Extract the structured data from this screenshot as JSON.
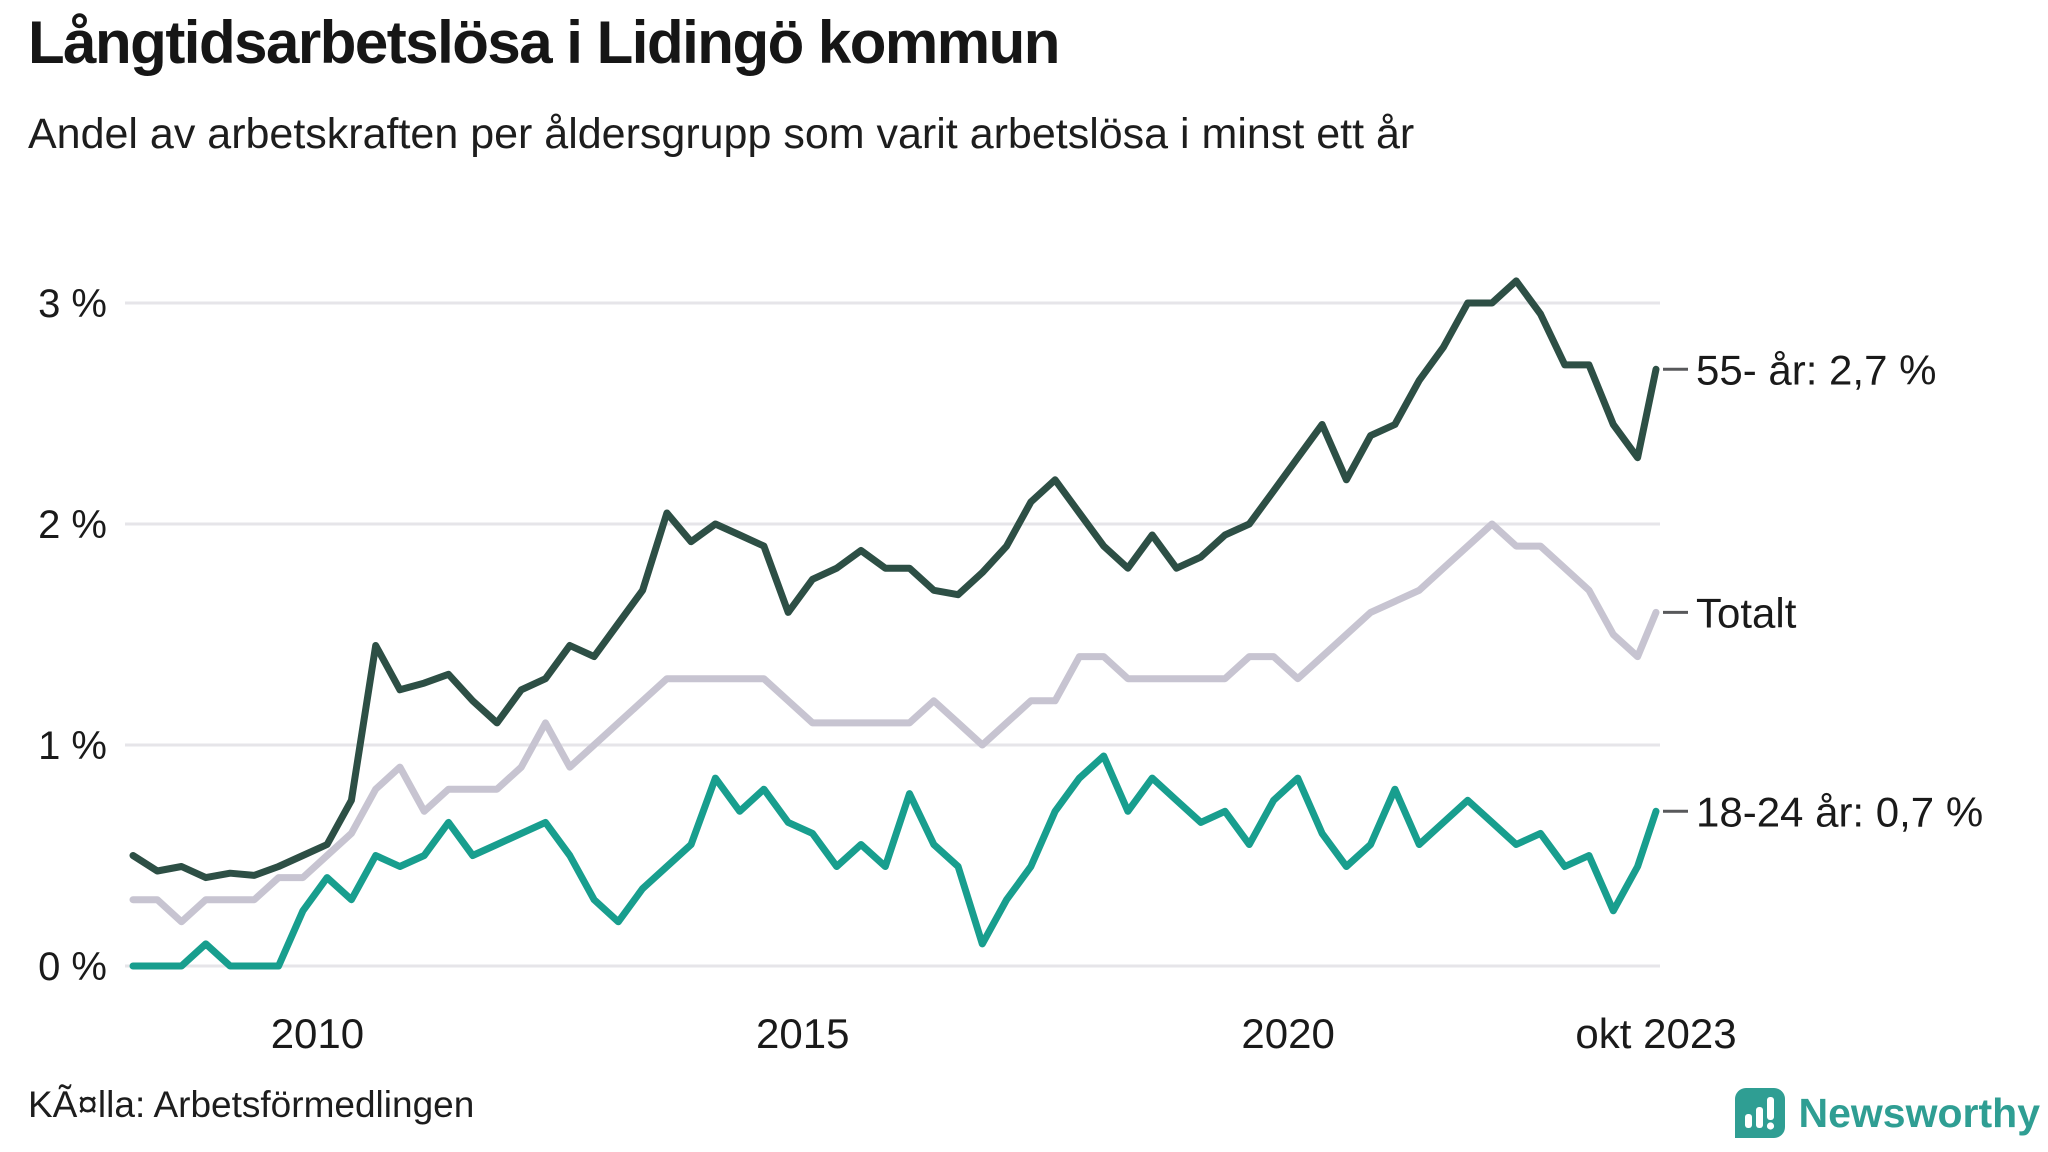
{
  "page": {
    "title": "Långtidsarbetslösa i Lidingö kommun",
    "subtitle": "Andel av arbetskraften per åldersgrupp som varit arbetslösa i minst ett år",
    "source": "KÃ¤lla: Arbetsförmedlingen",
    "logo_text": "Newsworthy"
  },
  "colors": {
    "title_text": "#161616",
    "axis_text": "#1a1a1a",
    "grid": "#e6e5e9",
    "leader_dash": "#58595b",
    "series_55": "#2d4f45",
    "series_total": "#c7c4d1",
    "series_young": "#189e8e",
    "logo_teal": "#2f9e93",
    "background": "#ffffff"
  },
  "chart_data": {
    "type": "line",
    "title": "Långtidsarbetslösa i Lidingö kommun",
    "subtitle": "Andel av arbetskraften per åldersgrupp som varit arbetslösa i minst ett år",
    "unit": "% av arbetskraften",
    "grid": "horizontal",
    "legend_position": "right-end-labels",
    "xlim": [
      2008.1,
      2023.79
    ],
    "ylim": [
      0,
      3.3
    ],
    "x": [
      2008.1,
      2008.35,
      2008.6,
      2008.85,
      2009.1,
      2009.35,
      2009.6,
      2009.85,
      2010.1,
      2010.35,
      2010.6,
      2010.85,
      2011.1,
      2011.35,
      2011.6,
      2011.85,
      2012.1,
      2012.35,
      2012.6,
      2012.85,
      2013.1,
      2013.35,
      2013.6,
      2013.85,
      2014.1,
      2014.35,
      2014.6,
      2014.85,
      2015.1,
      2015.35,
      2015.6,
      2015.85,
      2016.1,
      2016.35,
      2016.6,
      2016.85,
      2017.1,
      2017.35,
      2017.6,
      2017.85,
      2018.1,
      2018.35,
      2018.6,
      2018.85,
      2019.1,
      2019.35,
      2019.6,
      2019.85,
      2020.1,
      2020.35,
      2020.6,
      2020.85,
      2021.1,
      2021.35,
      2021.6,
      2021.85,
      2022.1,
      2022.35,
      2022.6,
      2022.85,
      2023.1,
      2023.35,
      2023.6,
      2023.79
    ],
    "series": [
      {
        "name": "Totalt",
        "end_label": "Totalt",
        "end_value": 1.6,
        "color": "#c7c4d1",
        "values": [
          0.3,
          0.3,
          0.2,
          0.3,
          0.3,
          0.3,
          0.4,
          0.4,
          0.5,
          0.6,
          0.8,
          0.9,
          0.7,
          0.8,
          0.8,
          0.8,
          0.9,
          1.1,
          0.9,
          1.0,
          1.1,
          1.2,
          1.3,
          1.3,
          1.3,
          1.3,
          1.3,
          1.2,
          1.1,
          1.1,
          1.1,
          1.1,
          1.1,
          1.2,
          1.1,
          1.0,
          1.1,
          1.2,
          1.2,
          1.4,
          1.4,
          1.3,
          1.3,
          1.3,
          1.3,
          1.3,
          1.4,
          1.4,
          1.3,
          1.4,
          1.5,
          1.6,
          1.65,
          1.7,
          1.8,
          1.9,
          2.0,
          1.9,
          1.9,
          1.8,
          1.7,
          1.5,
          1.4,
          1.6
        ]
      },
      {
        "name": "18-24 år",
        "end_label": "18-24 år: 0,7 %",
        "end_value": 0.7,
        "color": "#189e8e",
        "values": [
          0.0,
          0.0,
          0.0,
          0.1,
          0.0,
          0.0,
          0.0,
          0.25,
          0.4,
          0.3,
          0.5,
          0.45,
          0.5,
          0.65,
          0.5,
          0.55,
          0.6,
          0.65,
          0.5,
          0.3,
          0.2,
          0.35,
          0.45,
          0.55,
          0.85,
          0.7,
          0.8,
          0.65,
          0.6,
          0.45,
          0.55,
          0.45,
          0.78,
          0.55,
          0.45,
          0.1,
          0.3,
          0.45,
          0.7,
          0.85,
          0.95,
          0.7,
          0.85,
          0.75,
          0.65,
          0.7,
          0.55,
          0.75,
          0.85,
          0.6,
          0.45,
          0.55,
          0.8,
          0.55,
          0.65,
          0.75,
          0.65,
          0.55,
          0.6,
          0.45,
          0.5,
          0.25,
          0.45,
          0.7
        ]
      },
      {
        "name": "55- år",
        "end_label": "55- år: 2,7 %",
        "end_value": 2.7,
        "color": "#2d4f45",
        "values": [
          0.5,
          0.43,
          0.45,
          0.4,
          0.42,
          0.41,
          0.45,
          0.5,
          0.55,
          0.75,
          1.45,
          1.25,
          1.28,
          1.32,
          1.2,
          1.1,
          1.25,
          1.3,
          1.45,
          1.4,
          1.55,
          1.7,
          2.05,
          1.92,
          2.0,
          1.95,
          1.9,
          1.6,
          1.75,
          1.8,
          1.88,
          1.8,
          1.8,
          1.7,
          1.68,
          1.78,
          1.9,
          2.1,
          2.2,
          2.05,
          1.9,
          1.8,
          1.95,
          1.8,
          1.85,
          1.95,
          2.0,
          2.15,
          2.3,
          2.45,
          2.2,
          2.4,
          2.45,
          2.65,
          2.8,
          3.0,
          3.0,
          3.1,
          2.95,
          2.72,
          2.72,
          2.45,
          2.3,
          2.7
        ]
      }
    ],
    "y_ticks": [
      {
        "label": "3 %",
        "value": 3
      },
      {
        "label": "2 %",
        "value": 2
      },
      {
        "label": "1 %",
        "value": 1
      },
      {
        "label": "0 %",
        "value": 0
      }
    ],
    "x_ticks": [
      {
        "label": "2010",
        "value": 2010
      },
      {
        "label": "2015",
        "value": 2015
      },
      {
        "label": "2020",
        "value": 2020
      },
      {
        "label": "okt 2023",
        "value": 2023.79
      }
    ]
  }
}
